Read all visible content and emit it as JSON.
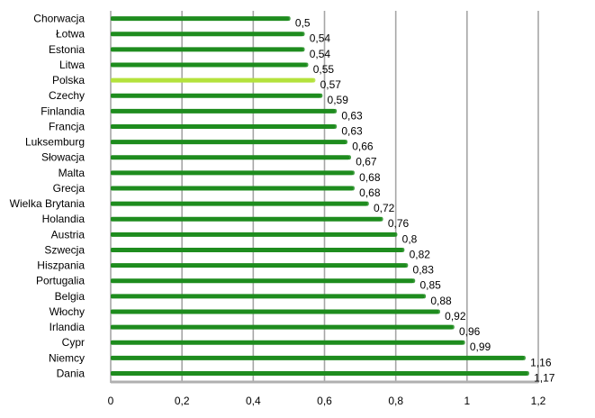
{
  "chart_data": {
    "type": "bar",
    "orientation": "horizontal",
    "categories": [
      "Chorwacja",
      "Łotwa",
      "Estonia",
      "Litwa",
      "Polska",
      "Czechy",
      "Finlandia",
      "Francja",
      "Luksemburg",
      "Słowacja",
      "Malta",
      "Grecja",
      "Wielka Brytania",
      "Holandia",
      "Austria",
      "Szwecja",
      "Hiszpania",
      "Portugalia",
      "Belgia",
      "Włochy",
      "Irlandia",
      "Cypr",
      "Niemcy",
      "Dania"
    ],
    "values": [
      0.5,
      0.54,
      0.54,
      0.55,
      0.57,
      0.59,
      0.63,
      0.63,
      0.66,
      0.67,
      0.68,
      0.68,
      0.72,
      0.76,
      0.8,
      0.82,
      0.83,
      0.85,
      0.88,
      0.92,
      0.96,
      0.99,
      1.16,
      1.17
    ],
    "value_labels": [
      "0,5",
      "0,54",
      "0,54",
      "0,55",
      "0,57",
      "0,59",
      "0,63",
      "0,63",
      "0,66",
      "0,67",
      "0,68",
      "0,68",
      "0,72",
      "0,76",
      "0,8",
      "0,82",
      "0,83",
      "0,85",
      "0,88",
      "0,92",
      "0,96",
      "0,99",
      "1,16",
      "1,17"
    ],
    "xlim": [
      0,
      1.2
    ],
    "ticks": [
      0,
      0.2,
      0.4,
      0.6,
      0.8,
      1,
      1.2
    ],
    "tick_labels": [
      "0",
      "0,2",
      "0,4",
      "0,6",
      "0,8",
      "1",
      "1,2"
    ],
    "highlight_category": "Polska",
    "colors": {
      "bar": "#1e8c1e",
      "highlight": "#b4e23c",
      "grid": "#a6a6a6"
    },
    "title": "",
    "xlabel": "",
    "ylabel": "",
    "grid": true
  }
}
